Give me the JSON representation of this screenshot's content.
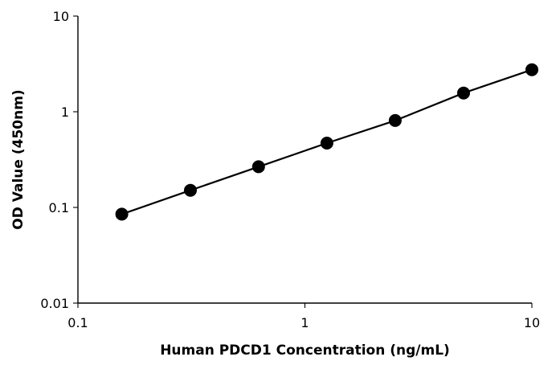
{
  "chart_data": {
    "type": "scatter",
    "title": "",
    "xlabel": "Human PDCD1 Concentration (ng/mL)",
    "ylabel": "OD Value (450nm)",
    "x_scale": "log",
    "y_scale": "log",
    "xlim": [
      0.1,
      10
    ],
    "ylim": [
      0.01,
      10
    ],
    "x_tick_labels": [
      "0.1",
      "1",
      "10"
    ],
    "y_tick_labels": [
      "0.01",
      "0.1",
      "1",
      "10"
    ],
    "grid": false,
    "legend": "none",
    "series": [
      {
        "x": [
          0.156,
          0.313,
          0.625,
          1.25,
          2.5,
          5,
          10
        ],
        "values": [
          0.085,
          0.151,
          0.266,
          0.47,
          0.81,
          1.57,
          2.75
        ]
      }
    ],
    "marker_color": "#000000",
    "line_color": "#000000"
  }
}
